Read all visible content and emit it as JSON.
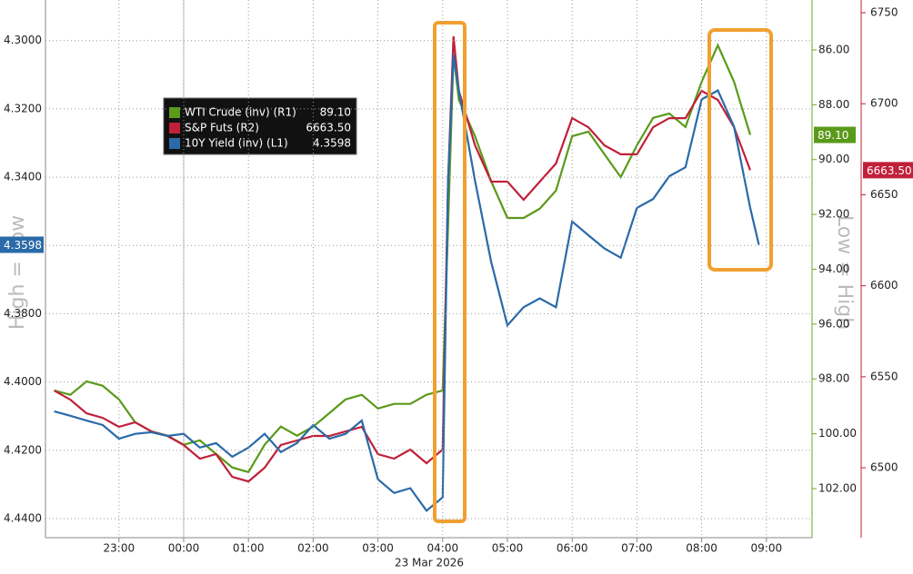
{
  "chart_data": {
    "type": "line",
    "date_label": "23 Mar 2026",
    "left_axis_title": "High = Low",
    "right_axis_title": "Low = High",
    "x": [
      "22:00",
      "22:15",
      "22:30",
      "22:45",
      "23:00",
      "23:15",
      "23:30",
      "23:45",
      "00:00",
      "00:15",
      "00:30",
      "00:45",
      "01:00",
      "01:15",
      "01:30",
      "01:45",
      "02:00",
      "02:15",
      "02:30",
      "02:45",
      "03:00",
      "03:15",
      "03:30",
      "03:45",
      "04:00",
      "04:05",
      "04:10",
      "04:15",
      "04:30",
      "04:45",
      "05:00",
      "05:15",
      "05:30",
      "05:45",
      "06:00",
      "06:15",
      "06:30",
      "06:45",
      "07:00",
      "07:15",
      "07:30",
      "07:45",
      "08:00",
      "08:15",
      "08:30",
      "08:45",
      "08:53"
    ],
    "xticks": [
      "23:00",
      "00:00",
      "01:00",
      "02:00",
      "03:00",
      "04:00",
      "05:00",
      "06:00",
      "07:00",
      "08:00",
      "09:00"
    ],
    "ylim": [
      4.4456,
      4.2881
    ],
    "yticks": [
      {
        "value": 4.3,
        "label": "4.3000"
      },
      {
        "value": 4.32,
        "label": "4.3200"
      },
      {
        "value": 4.34,
        "label": "4.3400"
      },
      {
        "value": 4.36,
        "label": "4.3600"
      },
      {
        "value": 4.38,
        "label": "4.3800"
      },
      {
        "value": 4.4,
        "label": "4.4000"
      },
      {
        "value": 4.42,
        "label": "4.4200"
      },
      {
        "value": 4.44,
        "label": "4.4400"
      }
    ],
    "y2lim": [
      103.79,
      84.18
    ],
    "y2ticks": [
      {
        "value": 86,
        "label": "86.00"
      },
      {
        "value": 88,
        "label": "88.00"
      },
      {
        "value": 90,
        "label": "90.00"
      },
      {
        "value": 92,
        "label": "92.00"
      },
      {
        "value": 94,
        "label": "94.00"
      },
      {
        "value": 96,
        "label": "96.00"
      },
      {
        "value": 98,
        "label": "98.00"
      },
      {
        "value": 100,
        "label": "100.00"
      },
      {
        "value": 102,
        "label": "102.00"
      }
    ],
    "y3lim": [
      6461.6,
      6757
    ],
    "y3ticks": [
      6500,
      6550,
      6600,
      6650,
      6700,
      6750
    ],
    "grid": true,
    "series": [
      {
        "name": "WTI Crude (inv) (R1)",
        "axis": "y2",
        "color": "#5a9a1a",
        "last_label": "89.10",
        "values": [
          98.42,
          98.58,
          98.09,
          98.25,
          98.75,
          99.58,
          99.91,
          100.07,
          100.4,
          100.24,
          100.74,
          101.23,
          101.4,
          100.4,
          99.74,
          100.07,
          99.74,
          99.25,
          98.75,
          98.58,
          99.08,
          98.91,
          98.91,
          98.58,
          98.42,
          92.46,
          86.17,
          87.82,
          89.15,
          90.8,
          92.13,
          92.13,
          91.79,
          91.13,
          89.15,
          88.98,
          89.81,
          90.64,
          89.48,
          88.48,
          88.32,
          88.81,
          87.16,
          85.83,
          87.16,
          89.1,
          null
        ]
      },
      {
        "name": "S&P Futs (R2)",
        "axis": "y3",
        "color": "#c0203a",
        "last_label": "6663.50",
        "values": [
          6542.4,
          6537.4,
          6529.9,
          6527.4,
          6522.5,
          6525.0,
          6520.0,
          6517.5,
          6512.5,
          6505.0,
          6507.5,
          6495.0,
          6492.5,
          6500.0,
          6512.5,
          6515.0,
          6517.5,
          6517.5,
          6520.0,
          6522.5,
          6507.5,
          6505.0,
          6510.0,
          6502.5,
          6510.0,
          6657.2,
          6737.0,
          6707.1,
          6677.1,
          6657.2,
          6657.2,
          6647.2,
          6657.2,
          6667.2,
          6692.1,
          6687.1,
          6677.1,
          6672.2,
          6672.2,
          6687.1,
          6692.1,
          6692.1,
          6707.1,
          6702.1,
          6687.1,
          6663.5,
          null
        ]
      },
      {
        "name": "10Y Yield (inv) (L1)",
        "axis": "y",
        "color": "#2a6aa8",
        "last_label": "4.3598",
        "values": [
          4.4086,
          4.4099,
          4.4113,
          4.4126,
          4.4166,
          4.4152,
          4.4147,
          4.4158,
          4.4152,
          4.4192,
          4.4179,
          4.4219,
          4.4192,
          4.4152,
          4.4205,
          4.4179,
          4.4126,
          4.4166,
          4.4152,
          4.4113,
          4.4285,
          4.4325,
          4.4311,
          4.4377,
          4.4338,
          4.3411,
          4.304,
          4.3146,
          4.3411,
          4.3649,
          4.3834,
          4.3781,
          4.3755,
          4.3781,
          4.353,
          4.357,
          4.3609,
          4.3636,
          4.349,
          4.3464,
          4.3397,
          4.3371,
          4.3172,
          4.3146,
          4.3252,
          4.349,
          4.3598
        ]
      }
    ]
  }
}
